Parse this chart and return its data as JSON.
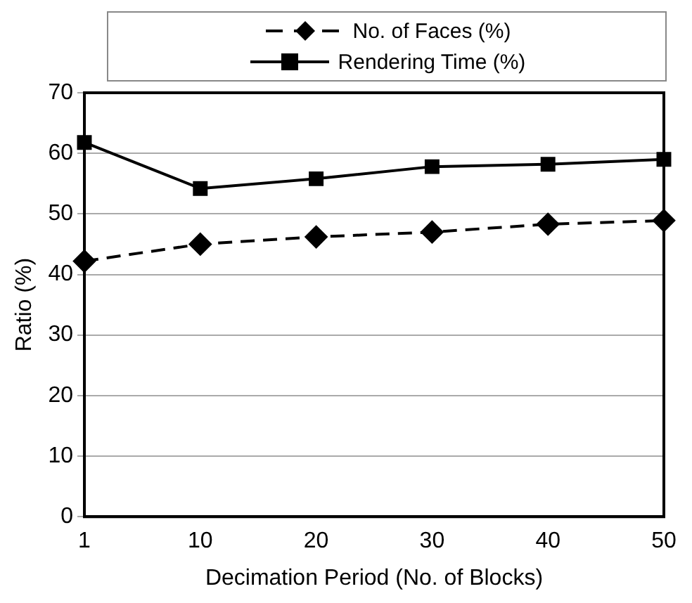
{
  "chart_data": {
    "type": "line",
    "xlabel": "Decimation Period (No. of Blocks)",
    "ylabel": "Ratio (%)",
    "categories": [
      "1",
      "10",
      "20",
      "30",
      "40",
      "50"
    ],
    "series": [
      {
        "name": "No. of Faces (%)",
        "color": "#000000",
        "marker": "diamond",
        "line_style": "dashed",
        "values": [
          42.2,
          45.0,
          46.2,
          47.0,
          48.3,
          48.9
        ]
      },
      {
        "name": "Rendering Time (%)",
        "color": "#000000",
        "marker": "square",
        "line_style": "solid",
        "values": [
          61.8,
          54.2,
          55.8,
          57.8,
          58.2,
          59.0
        ]
      }
    ],
    "ylim": [
      0,
      70
    ],
    "yticks": [
      0,
      10,
      20,
      30,
      40,
      50,
      60,
      70
    ],
    "grid": "y",
    "legend": "top"
  }
}
